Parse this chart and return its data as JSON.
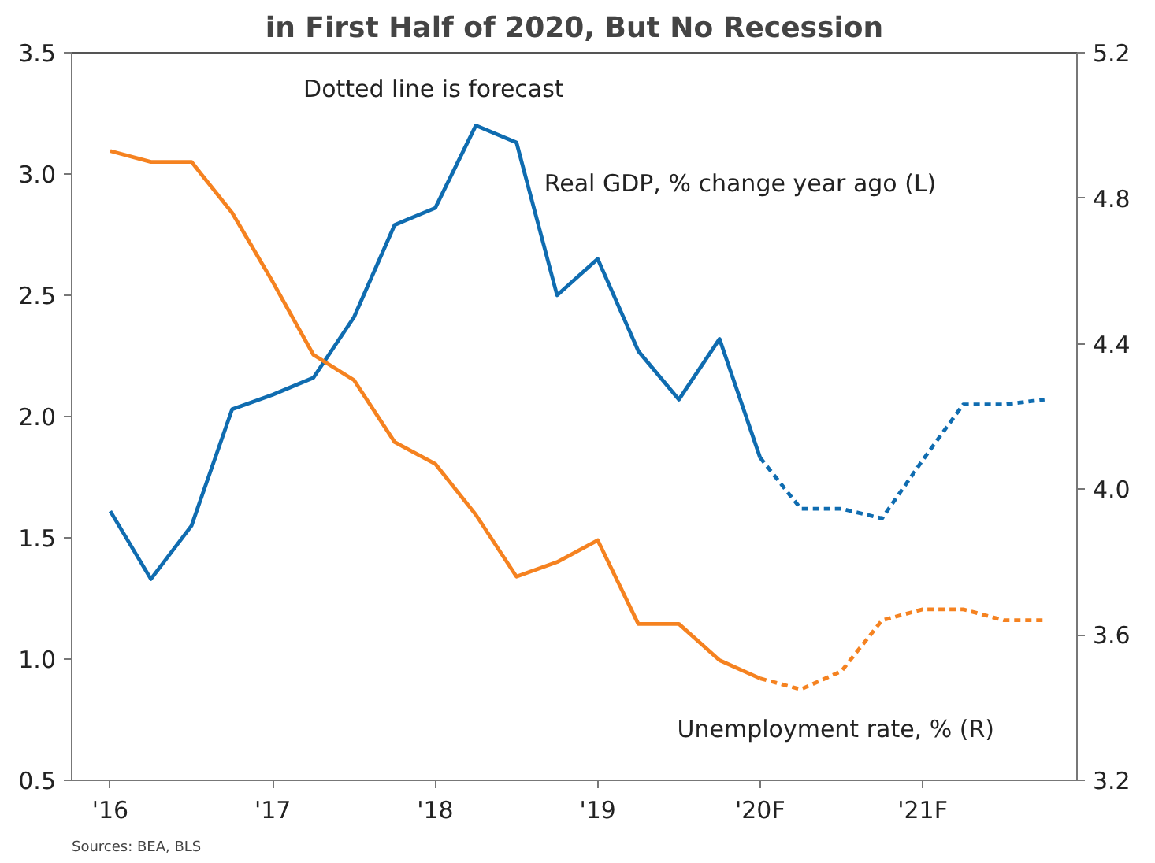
{
  "chart_data": {
    "type": "line",
    "title": "in First Half of 2020, But No Recession",
    "categories": [
      "'16",
      null,
      null,
      null,
      "'17",
      null,
      null,
      null,
      "'18",
      null,
      null,
      null,
      "'19",
      null,
      null,
      null,
      "'20F",
      null,
      null,
      null,
      "'21F",
      null,
      null,
      null
    ],
    "series": [
      {
        "name": "Real GDP, % change year ago (L)",
        "color": "#0f6cb0",
        "line_style": "solid",
        "values": [
          1.61,
          1.33,
          1.55,
          2.03,
          2.09,
          2.16,
          2.41,
          2.79,
          2.86,
          3.2,
          3.13,
          2.5,
          2.65,
          2.27,
          2.07,
          2.32,
          1.83,
          null,
          null,
          null,
          null,
          null,
          null,
          null
        ]
      },
      {
        "color": "#0f6cb0",
        "line_style": "dashed",
        "values": [
          null,
          null,
          null,
          null,
          null,
          null,
          null,
          null,
          null,
          null,
          null,
          null,
          null,
          null,
          null,
          null,
          1.83,
          1.62,
          1.62,
          1.58,
          1.82,
          2.05,
          2.05,
          2.07
        ]
      },
      {
        "name": "Unemployment rate, % (R)",
        "color": "#f58220",
        "line_style": "solid",
        "axis": "y2",
        "values": [
          4.93,
          4.9,
          4.9,
          4.76,
          4.57,
          4.37,
          4.3,
          4.13,
          4.07,
          3.93,
          3.76,
          3.8,
          3.86,
          3.63,
          3.63,
          3.53,
          3.48,
          null,
          null,
          null,
          null,
          null,
          null,
          null
        ]
      },
      {
        "color": "#f58220",
        "line_style": "dashed",
        "axis": "y2",
        "values": [
          null,
          null,
          null,
          null,
          null,
          null,
          null,
          null,
          null,
          null,
          null,
          null,
          null,
          null,
          null,
          null,
          3.48,
          3.45,
          3.5,
          3.64,
          3.67,
          3.67,
          3.64,
          3.64
        ]
      }
    ],
    "ylim": [
      0.5,
      3.5
    ],
    "yticks": [
      {
        "value": 0.5,
        "label": "0.5"
      },
      {
        "value": 1.0,
        "label": "1.0"
      },
      {
        "value": 1.5,
        "label": "1.5"
      },
      {
        "value": 2.0,
        "label": "2.0"
      },
      {
        "value": 2.5,
        "label": "2.5"
      },
      {
        "value": 3.0,
        "label": "3.0"
      },
      {
        "value": 3.5,
        "label": "3.5"
      }
    ],
    "y2lim": [
      3.2,
      5.2
    ],
    "y2ticks": [
      {
        "value": 3.2,
        "label": "3.2"
      },
      {
        "value": 3.6,
        "label": "3.6"
      },
      {
        "value": 4.0,
        "label": "4.0"
      },
      {
        "value": 4.4,
        "label": "4.4"
      },
      {
        "value": 4.8,
        "label": "4.8"
      },
      {
        "value": 5.2,
        "label": "5.2"
      }
    ],
    "grid": false,
    "annotations": [
      "Dotted line is forecast",
      "Sources: BEA, BLS"
    ]
  }
}
